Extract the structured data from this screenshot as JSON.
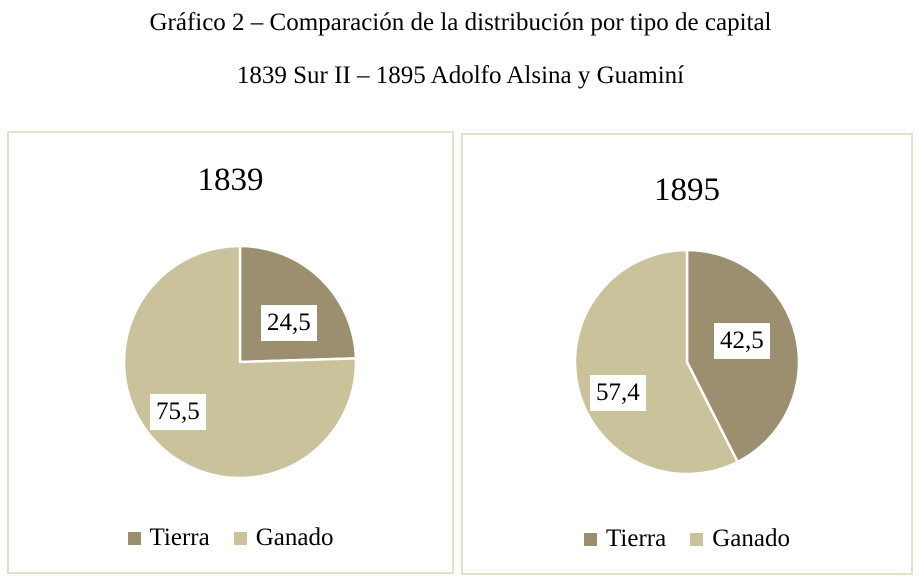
{
  "figure": {
    "title_line1": "Gráfico 2 – Comparación de la distribución por tipo de capital",
    "title_line2": "1839 Sur II – 1895 Adolfo Alsina y Guaminí"
  },
  "colors": {
    "tierra": "#9b8f70",
    "ganado": "#c9c29a",
    "border": "#e3e1c7",
    "slice_edge": "#ffffff"
  },
  "chart_data": [
    {
      "type": "pie",
      "title": "1839",
      "categories": [
        "Tierra",
        "Ganado"
      ],
      "values": [
        24.5,
        75.5
      ],
      "value_labels": [
        "24,5",
        "75,5"
      ],
      "legend": [
        "Tierra",
        "Ganado"
      ],
      "legend_position": "bottom",
      "start": "12 o'clock, clockwise"
    },
    {
      "type": "pie",
      "title": "1895",
      "categories": [
        "Tierra",
        "Ganado"
      ],
      "values": [
        42.5,
        57.4
      ],
      "value_labels": [
        "42,5",
        "57,4"
      ],
      "legend": [
        "Tierra",
        "Ganado"
      ],
      "legend_position": "bottom",
      "start": "12 o'clock, clockwise"
    }
  ]
}
